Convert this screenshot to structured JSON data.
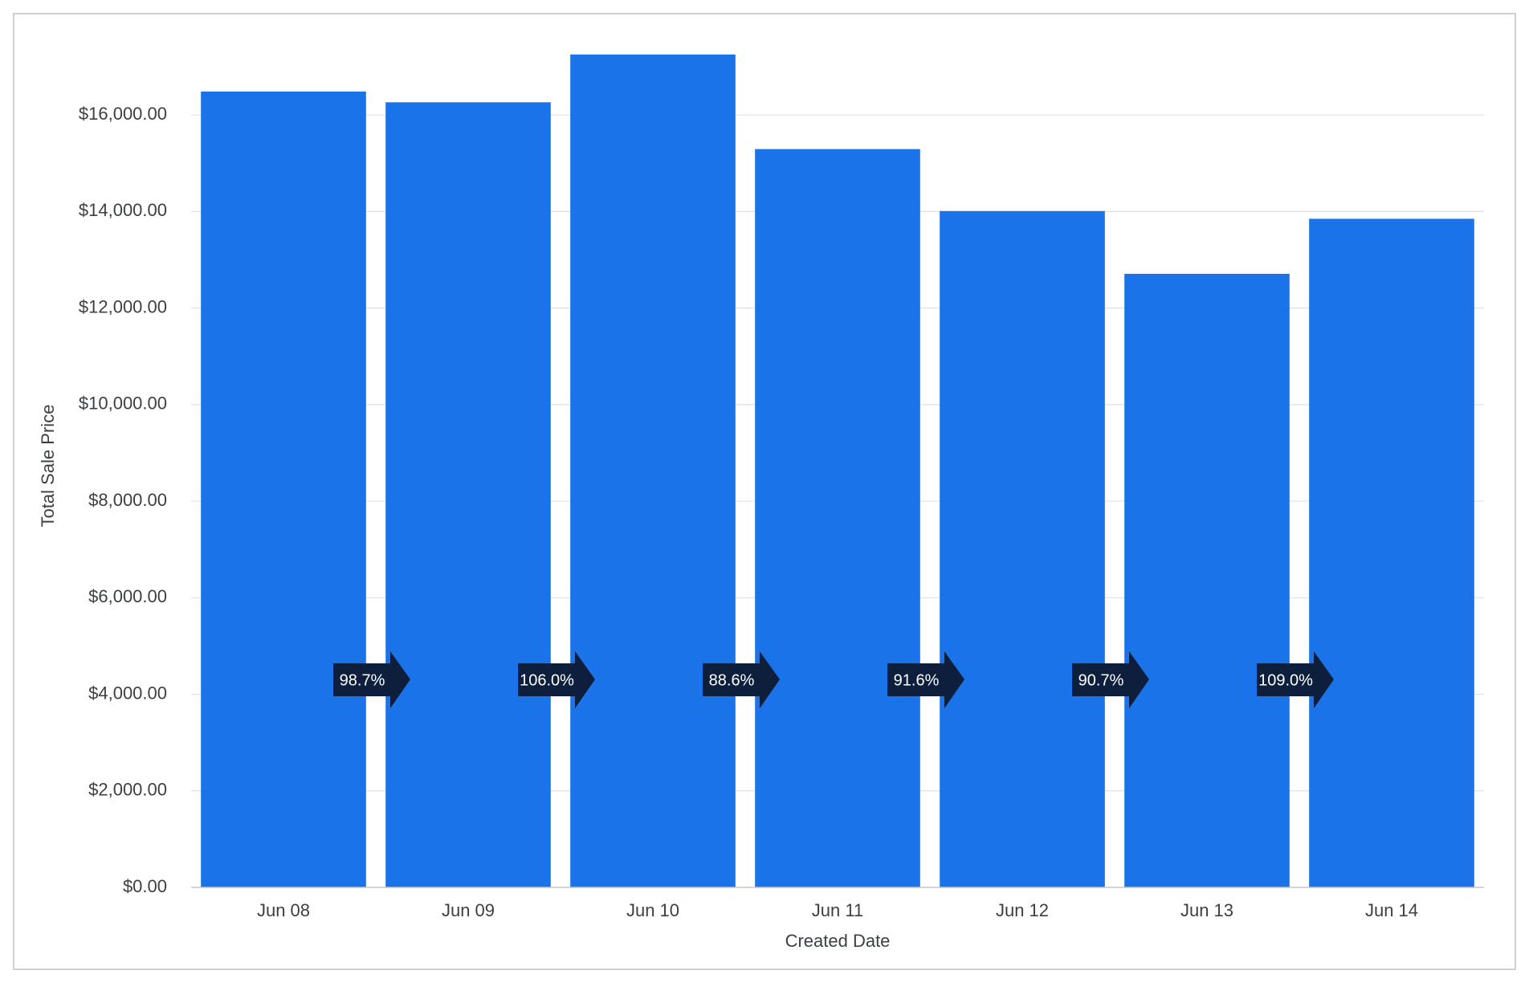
{
  "chart_data": {
    "type": "bar",
    "x_label": "Created Date",
    "y_label": "Total Sale Price",
    "categories": [
      "Jun 08",
      "Jun 09",
      "Jun 10",
      "Jun 11",
      "Jun 12",
      "Jun 13",
      "Jun 14"
    ],
    "values": [
      16485,
      16263,
      17253,
      15293,
      14010,
      12710,
      13850
    ],
    "color": "#1a73e8",
    "change_labels": [
      "98.7%",
      "106.0%",
      "88.6%",
      "91.6%",
      "90.7%",
      "109.0%"
    ],
    "ylim": [
      0,
      17500
    ],
    "yticks": [
      {
        "value": 0,
        "label": "$0.00"
      },
      {
        "value": 2000,
        "label": "$2,000.00"
      },
      {
        "value": 4000,
        "label": "$4,000.00"
      },
      {
        "value": 6000,
        "label": "$6,000.00"
      },
      {
        "value": 8000,
        "label": "$8,000.00"
      },
      {
        "value": 10000,
        "label": "$10,000.00"
      },
      {
        "value": 12000,
        "label": "$12,000.00"
      },
      {
        "value": 14000,
        "label": "$14,000.00"
      },
      {
        "value": 16000,
        "label": "$16,000.00"
      }
    ],
    "grid": true
  }
}
